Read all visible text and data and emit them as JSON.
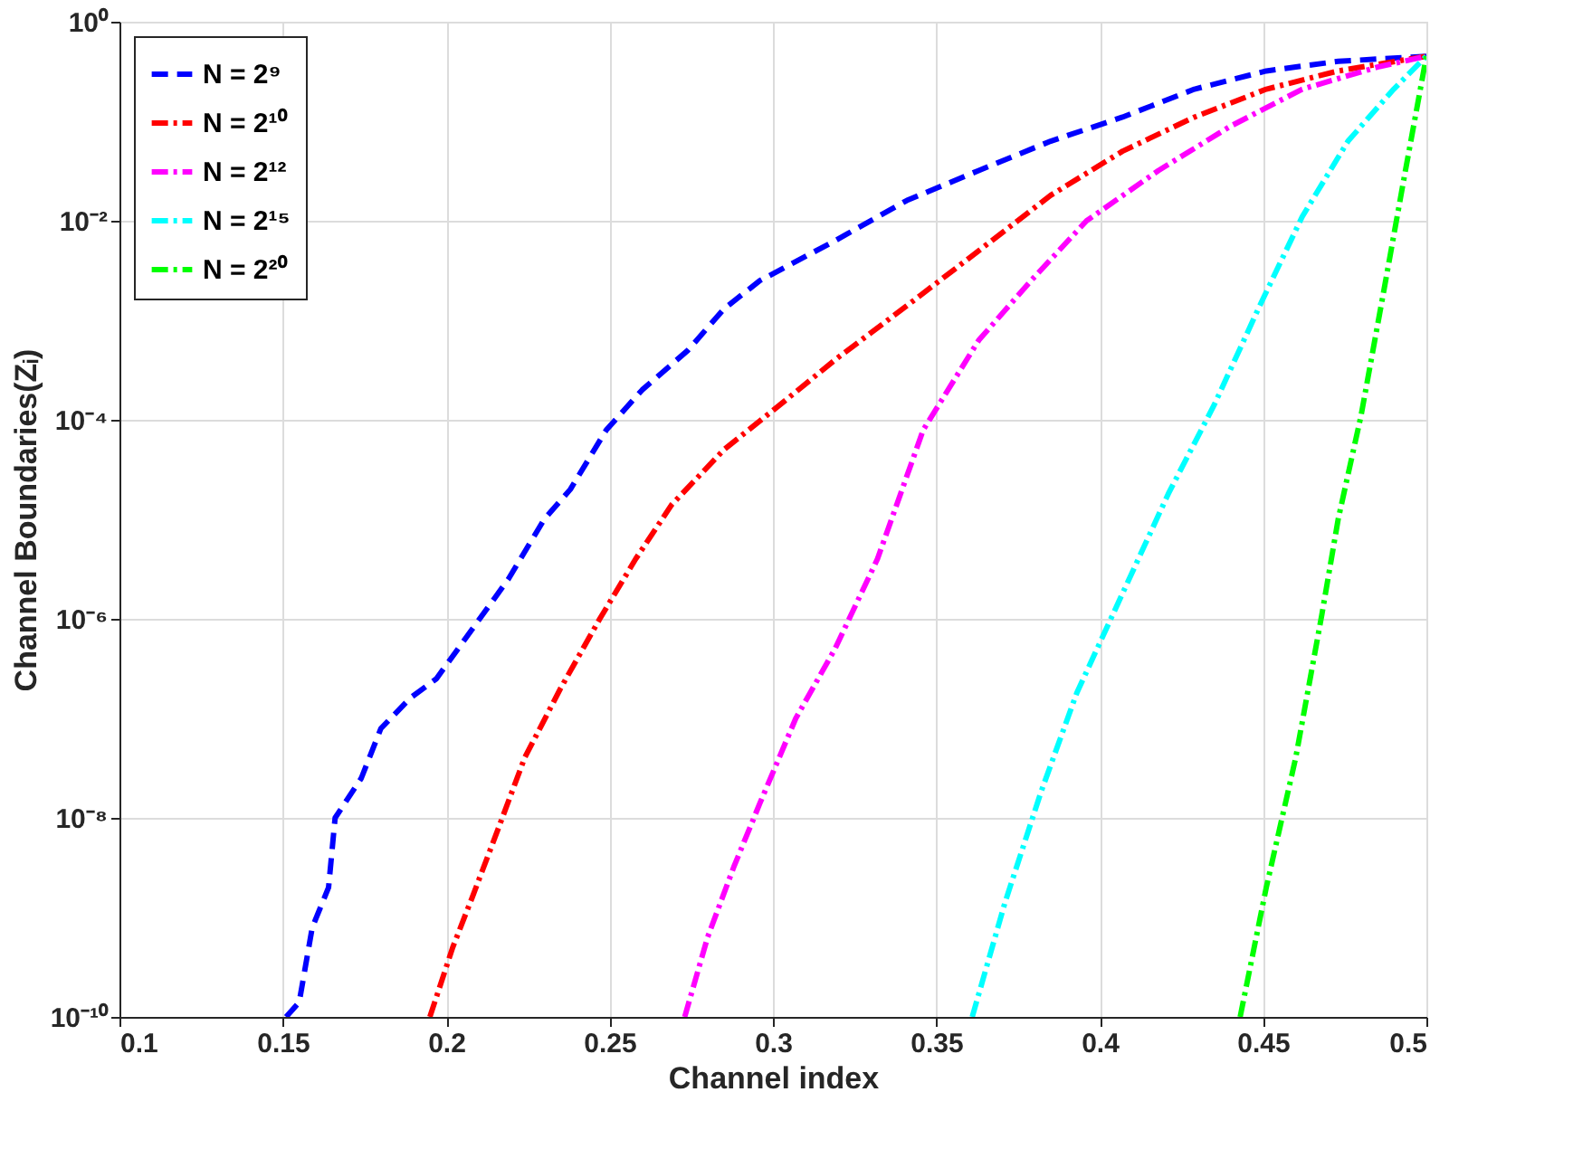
{
  "chart_data": {
    "type": "line",
    "xlabel": "Channel index",
    "ylabel": "Channel Boundaries(Zᵢ)",
    "xlim": [
      0.1,
      0.5
    ],
    "xticks": [
      0.1,
      0.15,
      0.2,
      0.25,
      0.3,
      0.35,
      0.4,
      0.45,
      0.5
    ],
    "ylim": [
      1e-10,
      1
    ],
    "yticks": [
      {
        "value": 1e-10,
        "label": "10⁻¹⁰"
      },
      {
        "value": 1e-08,
        "label": "10⁻⁸"
      },
      {
        "value": 1e-06,
        "label": "10⁻⁶"
      },
      {
        "value": 0.0001,
        "label": "10⁻⁴"
      },
      {
        "value": 0.01,
        "label": "10⁻²"
      },
      {
        "value": 1,
        "label": "10⁰"
      }
    ],
    "log": "y",
    "grid": true,
    "legend": "top left",
    "marker": "none",
    "series": [
      {
        "name": "N = 2⁹",
        "color": "#0000ff",
        "line_style": "dashed",
        "x": [
          0.151,
          0.155,
          0.159,
          0.164,
          0.166,
          0.174,
          0.18,
          0.189,
          0.197,
          0.208,
          0.219,
          0.23,
          0.238,
          0.249,
          0.26,
          0.274,
          0.285,
          0.296,
          0.319,
          0.341,
          0.363,
          0.385,
          0.407,
          0.429,
          0.451,
          0.473,
          0.5
        ],
        "values": [
          1e-10,
          1.4e-10,
          7.9e-10,
          2e-09,
          1e-08,
          2.5e-08,
          7.9e-08,
          1.6e-07,
          2.5e-07,
          7.9e-07,
          2.5e-06,
          1e-05,
          2e-05,
          7.9e-05,
          0.0002,
          0.0005,
          0.0013,
          0.0025,
          0.0063,
          0.016,
          0.032,
          0.063,
          0.11,
          0.21,
          0.32,
          0.4,
          0.45
        ]
      },
      {
        "name": "N = 2¹⁰",
        "color": "#ff0000",
        "line_style": "dashdot",
        "x": [
          0.195,
          0.202,
          0.208,
          0.216,
          0.224,
          0.235,
          0.247,
          0.258,
          0.269,
          0.285,
          0.302,
          0.319,
          0.341,
          0.363,
          0.385,
          0.407,
          0.429,
          0.451,
          0.473,
          0.5
        ],
        "values": [
          1e-10,
          5e-10,
          1.6e-09,
          7.9e-09,
          4e-08,
          2e-07,
          1e-06,
          4e-06,
          1.4e-05,
          5e-05,
          0.00014,
          0.0004,
          0.0014,
          0.005,
          0.018,
          0.05,
          0.11,
          0.21,
          0.32,
          0.45
        ]
      },
      {
        "name": "N = 2¹²",
        "color": "#ff00ff",
        "line_style": "dashdot",
        "x": [
          0.273,
          0.28,
          0.288,
          0.296,
          0.307,
          0.319,
          0.332,
          0.346,
          0.363,
          0.379,
          0.396,
          0.418,
          0.44,
          0.462,
          0.485,
          0.5
        ],
        "values": [
          1e-10,
          6.3e-10,
          3.2e-09,
          1.4e-08,
          1e-07,
          5e-07,
          4e-06,
          7.9e-05,
          0.00063,
          0.0025,
          0.01,
          0.032,
          0.089,
          0.21,
          0.35,
          0.45
        ]
      },
      {
        "name": "N = 2¹⁵",
        "color": "#00ffff",
        "line_style": "dashdot",
        "x": [
          0.361,
          0.371,
          0.382,
          0.393,
          0.407,
          0.421,
          0.435,
          0.449,
          0.462,
          0.476,
          0.49,
          0.5
        ],
        "values": [
          1e-10,
          1.4e-09,
          1.8e-08,
          1.8e-07,
          1.8e-06,
          1.8e-05,
          0.00014,
          0.0014,
          0.011,
          0.063,
          0.21,
          0.45
        ]
      },
      {
        "name": "N = 2²⁰",
        "color": "#00ff00",
        "line_style": "dashdot",
        "x": [
          0.443,
          0.451,
          0.46,
          0.468,
          0.473,
          0.48,
          0.487,
          0.493,
          0.5
        ],
        "values": [
          1e-10,
          2e-09,
          4e-08,
          1.1e-06,
          1e-05,
          0.00011,
          0.002,
          0.025,
          0.45
        ]
      }
    ]
  }
}
